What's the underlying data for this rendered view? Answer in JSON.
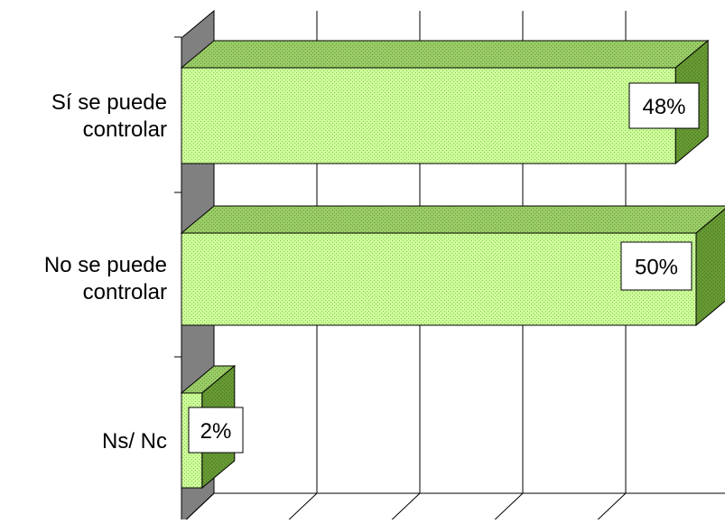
{
  "chart_data": {
    "type": "bar",
    "orientation": "horizontal",
    "three_d": true,
    "categories": [
      [
        "Sí se puede",
        "controlar"
      ],
      [
        "No se puede",
        "controlar"
      ],
      [
        "Ns/ Nc"
      ]
    ],
    "values": [
      48,
      50,
      2
    ],
    "data_labels": [
      "48%",
      "50%",
      "2%"
    ],
    "xlim": [
      0,
      50
    ],
    "grid": true,
    "legend": false,
    "colors": {
      "bar_front": "#ccff99",
      "bar_top": "#99cc66",
      "bar_side": "#669933",
      "wall": "#808080",
      "gridline": "#000000"
    }
  }
}
